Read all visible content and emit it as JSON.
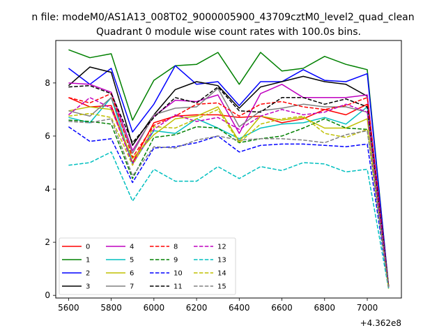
{
  "chart_data": {
    "type": "line",
    "title": "Quadrant 0 module wise count rates with 100.0s bins.",
    "suptitle": "n file: modeM0/AS1A13_008T02_9000005900_43709cztM0_level2_quad_clean",
    "xlabel": "",
    "ylabel": "",
    "x_offset_label": "+4.362e8",
    "x": [
      5600,
      5700,
      5800,
      5900,
      6000,
      6100,
      6200,
      6300,
      6400,
      6500,
      6600,
      6700,
      6800,
      6900,
      7000,
      7100
    ],
    "xlim": [
      5540,
      7160
    ],
    "ylim": [
      -0.1,
      9.6
    ],
    "xticks": [
      5600,
      5800,
      6000,
      6200,
      6400,
      6600,
      6800,
      7000
    ],
    "yticks": [
      0,
      2,
      4,
      6,
      8
    ],
    "grid": false,
    "legend": {
      "placement": "lower-left",
      "columns": 4
    },
    "series": [
      {
        "name": "0",
        "color": "#ff0000",
        "dash": "solid",
        "values": [
          7.45,
          7.1,
          7.15,
          5.0,
          6.5,
          6.75,
          6.8,
          6.8,
          6.7,
          6.75,
          6.5,
          6.65,
          7.0,
          6.8,
          7.2,
          0.35
        ]
      },
      {
        "name": "1",
        "color": "#008000",
        "dash": "solid",
        "values": [
          9.25,
          8.95,
          9.1,
          6.6,
          8.1,
          8.65,
          8.7,
          9.15,
          7.95,
          9.15,
          8.45,
          8.55,
          9.0,
          8.7,
          8.5,
          0.35
        ]
      },
      {
        "name": "2",
        "color": "#0000ff",
        "dash": "solid",
        "values": [
          8.55,
          7.95,
          8.55,
          6.15,
          7.2,
          8.65,
          7.95,
          8.05,
          7.15,
          8.05,
          8.05,
          8.5,
          8.1,
          8.05,
          8.35,
          0.35
        ]
      },
      {
        "name": "3",
        "color": "#000000",
        "dash": "solid",
        "values": [
          7.9,
          8.6,
          8.4,
          5.65,
          6.8,
          7.75,
          8.05,
          7.9,
          7.05,
          7.85,
          8.05,
          8.25,
          8.05,
          7.95,
          7.5,
          0.35
        ]
      },
      {
        "name": "4",
        "color": "#bf00bf",
        "dash": "solid",
        "values": [
          8.0,
          7.95,
          7.65,
          5.45,
          6.75,
          7.35,
          7.3,
          7.55,
          6.1,
          7.6,
          7.95,
          7.45,
          7.45,
          7.45,
          7.55,
          0.3
        ]
      },
      {
        "name": "5",
        "color": "#00bfbf",
        "dash": "solid",
        "values": [
          6.7,
          6.5,
          7.45,
          4.95,
          6.2,
          6.1,
          6.65,
          6.3,
          5.9,
          6.3,
          6.45,
          6.5,
          6.7,
          6.45,
          7.1,
          0.3
        ]
      },
      {
        "name": "6",
        "color": "#bfbf00",
        "dash": "solid",
        "values": [
          6.95,
          7.1,
          7.0,
          5.15,
          6.05,
          6.65,
          6.75,
          7.1,
          5.8,
          6.75,
          6.6,
          6.7,
          6.3,
          6.3,
          6.65,
          0.3
        ]
      },
      {
        "name": "7",
        "color": "#808080",
        "dash": "solid",
        "values": [
          6.95,
          6.75,
          7.45,
          5.35,
          6.8,
          7.05,
          7.1,
          7.8,
          6.35,
          6.95,
          7.05,
          7.2,
          7.1,
          7.1,
          6.9,
          0.3
        ]
      },
      {
        "name": "8",
        "color": "#ff0000",
        "dash": "dashed",
        "values": [
          7.45,
          7.25,
          7.6,
          5.2,
          6.4,
          6.75,
          7.2,
          7.25,
          6.75,
          7.2,
          7.3,
          7.1,
          7.0,
          7.15,
          7.45,
          0.35
        ]
      },
      {
        "name": "9",
        "color": "#008000",
        "dash": "dashed",
        "values": [
          6.6,
          6.55,
          6.45,
          4.4,
          5.95,
          6.05,
          6.35,
          6.3,
          5.75,
          5.9,
          6.0,
          6.3,
          6.65,
          6.3,
          6.25,
          0.3
        ]
      },
      {
        "name": "10",
        "color": "#0000ff",
        "dash": "dashed",
        "values": [
          6.35,
          5.8,
          5.9,
          4.25,
          5.55,
          5.6,
          5.75,
          6.0,
          5.4,
          5.65,
          5.7,
          5.7,
          5.65,
          5.6,
          5.7,
          0.3
        ]
      },
      {
        "name": "11",
        "color": "#000000",
        "dash": "dashed",
        "values": [
          7.85,
          7.9,
          7.6,
          5.75,
          6.7,
          7.45,
          7.25,
          7.85,
          6.95,
          6.9,
          7.45,
          7.45,
          7.2,
          7.4,
          7.1,
          0.35
        ]
      },
      {
        "name": "12",
        "color": "#bf00bf",
        "dash": "dashed",
        "values": [
          6.8,
          7.45,
          7.05,
          4.95,
          6.25,
          6.8,
          6.55,
          6.7,
          6.25,
          6.75,
          7.0,
          6.8,
          6.9,
          7.2,
          6.9,
          0.3
        ]
      },
      {
        "name": "13",
        "color": "#00bfbf",
        "dash": "dashed",
        "values": [
          4.9,
          5.0,
          5.4,
          3.55,
          4.75,
          4.3,
          4.3,
          4.85,
          4.4,
          4.85,
          4.7,
          5.0,
          4.95,
          4.65,
          4.75,
          0.25
        ]
      },
      {
        "name": "14",
        "color": "#bfbf00",
        "dash": "dashed",
        "values": [
          6.75,
          6.85,
          6.7,
          4.9,
          6.35,
          6.3,
          6.65,
          7.0,
          5.75,
          6.45,
          6.65,
          6.75,
          6.1,
          5.95,
          6.25,
          0.25
        ]
      },
      {
        "name": "15",
        "color": "#808080",
        "dash": "dashed",
        "values": [
          6.55,
          6.5,
          6.65,
          4.5,
          5.6,
          5.55,
          5.85,
          6.0,
          5.85,
          5.9,
          5.9,
          5.85,
          5.75,
          6.05,
          6.2,
          0.3
        ]
      }
    ]
  }
}
